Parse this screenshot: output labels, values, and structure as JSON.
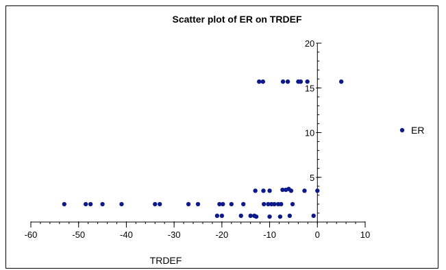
{
  "chart_data": {
    "type": "scatter",
    "title": "Scatter plot of ER on TRDEF",
    "xlabel": "TRDEF",
    "ylabel": "",
    "xlim": [
      -60,
      10
    ],
    "ylim": [
      0,
      20
    ],
    "x_ticks": [
      -60,
      -50,
      -40,
      -30,
      -20,
      -10,
      0,
      10
    ],
    "y_ticks": [
      5,
      10,
      15,
      20
    ],
    "legend_position": "right",
    "grid": false,
    "marker_color": "#0d1a8c",
    "series": [
      {
        "name": "ER",
        "points": [
          [
            -53,
            2.0
          ],
          [
            -48.5,
            2.0
          ],
          [
            -47.5,
            2.0
          ],
          [
            -45,
            2.0
          ],
          [
            -41,
            2.0
          ],
          [
            -34,
            2.0
          ],
          [
            -33,
            2.0
          ],
          [
            -27,
            2.0
          ],
          [
            -25,
            2.0
          ],
          [
            -20.5,
            2.0
          ],
          [
            -19.8,
            2.0
          ],
          [
            -18,
            2.0
          ],
          [
            -15.5,
            2.0
          ],
          [
            -11.2,
            2.0
          ],
          [
            -10.3,
            2.0
          ],
          [
            -9.6,
            2.0
          ],
          [
            -9.0,
            2.0
          ],
          [
            -8.2,
            2.0
          ],
          [
            -7.6,
            2.0
          ],
          [
            -5.2,
            2.0
          ],
          [
            -21,
            0.7
          ],
          [
            -20,
            0.7
          ],
          [
            -16,
            0.7
          ],
          [
            -14,
            0.7
          ],
          [
            -13.2,
            0.7
          ],
          [
            -12.8,
            0.6
          ],
          [
            -10,
            0.6
          ],
          [
            -7.8,
            0.6
          ],
          [
            -5.8,
            0.7
          ],
          [
            -0.8,
            0.7
          ],
          [
            -13,
            3.5
          ],
          [
            -11.3,
            3.5
          ],
          [
            -10,
            3.5
          ],
          [
            -7.3,
            3.6
          ],
          [
            -6.6,
            3.6
          ],
          [
            -6,
            3.7
          ],
          [
            -5.5,
            3.5
          ],
          [
            -2.7,
            3.5
          ],
          [
            0,
            3.5
          ],
          [
            -12.2,
            15.7
          ],
          [
            -11.4,
            15.7
          ],
          [
            -7.2,
            15.7
          ],
          [
            -6.2,
            15.7
          ],
          [
            -4,
            15.7
          ],
          [
            -3.5,
            15.7
          ],
          [
            -2.1,
            15.7
          ],
          [
            5,
            15.7
          ]
        ]
      }
    ]
  }
}
